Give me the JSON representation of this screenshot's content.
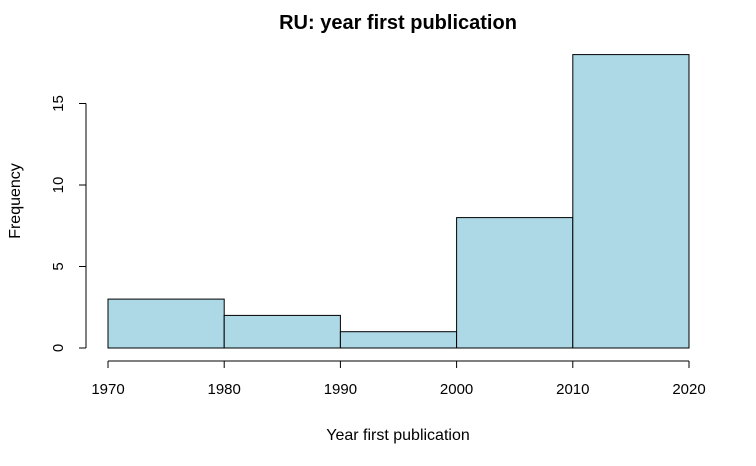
{
  "chart_data": {
    "type": "bar",
    "title": "RU: year first publication",
    "xlabel": "Year first publication",
    "ylabel": "Frequency",
    "bins": [
      {
        "start": 1970,
        "end": 1980,
        "count": 3
      },
      {
        "start": 1980,
        "end": 1990,
        "count": 2
      },
      {
        "start": 1990,
        "end": 2000,
        "count": 1
      },
      {
        "start": 2000,
        "end": 2010,
        "count": 8
      },
      {
        "start": 2010,
        "end": 2020,
        "count": 18
      }
    ],
    "xlim": [
      1970,
      2020
    ],
    "ylim": [
      0,
      18
    ],
    "x_ticks": [
      1970,
      1980,
      1990,
      2000,
      2010,
      2020
    ],
    "y_ticks": [
      0,
      5,
      10,
      15
    ],
    "bar_color": "#add8e6",
    "grid": false
  }
}
